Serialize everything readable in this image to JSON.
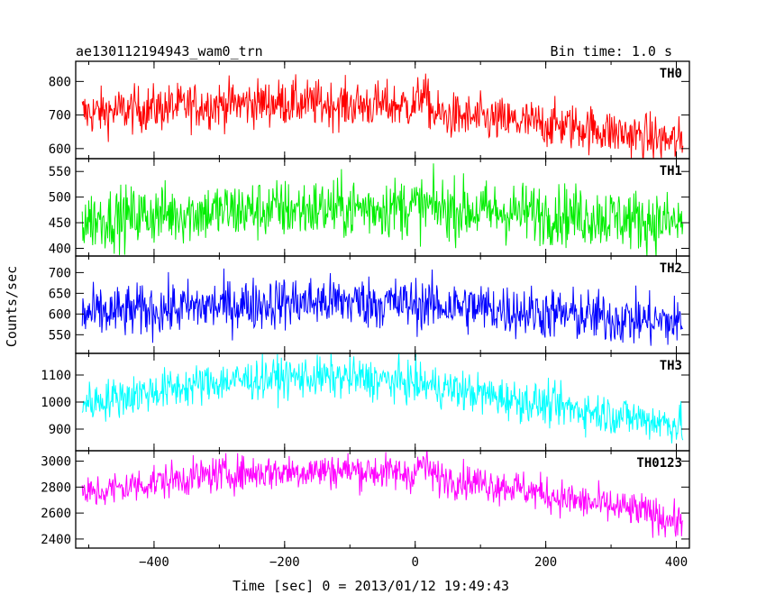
{
  "header": {
    "left_title": "ae130112194943_wam0_trn",
    "right_title": "Bin time: 1.0 s"
  },
  "chart_data": [
    {
      "type": "line",
      "label": "TH0",
      "color": "#ff0000",
      "x_range": [
        -510,
        410
      ],
      "ylim": [
        570,
        860
      ],
      "yticks": [
        600,
        700,
        800
      ],
      "trend": [
        [
          -510,
          705
        ],
        [
          -400,
          720
        ],
        [
          -300,
          732
        ],
        [
          -200,
          738
        ],
        [
          -100,
          730
        ],
        [
          0,
          728
        ],
        [
          10,
          770
        ],
        [
          30,
          700
        ],
        [
          150,
          680
        ],
        [
          250,
          665
        ],
        [
          350,
          635
        ],
        [
          410,
          618
        ]
      ],
      "noise": 35
    },
    {
      "type": "line",
      "label": "TH1",
      "color": "#00ee00",
      "x_range": [
        -510,
        410
      ],
      "ylim": [
        385,
        575
      ],
      "yticks": [
        400,
        450,
        500,
        550
      ],
      "trend": [
        [
          -510,
          455
        ],
        [
          -400,
          466
        ],
        [
          -300,
          472
        ],
        [
          -200,
          476
        ],
        [
          -100,
          478
        ],
        [
          0,
          482
        ],
        [
          100,
          472
        ],
        [
          200,
          468
        ],
        [
          300,
          460
        ],
        [
          410,
          448
        ]
      ],
      "noise": 30
    },
    {
      "type": "line",
      "label": "TH2",
      "color": "#0000ff",
      "x_range": [
        -510,
        410
      ],
      "ylim": [
        505,
        740
      ],
      "yticks": [
        550,
        600,
        650,
        700
      ],
      "trend": [
        [
          -510,
          598
        ],
        [
          -400,
          610
        ],
        [
          -300,
          620
        ],
        [
          -200,
          628
        ],
        [
          -100,
          630
        ],
        [
          0,
          624
        ],
        [
          100,
          615
        ],
        [
          200,
          602
        ],
        [
          300,
          590
        ],
        [
          410,
          578
        ]
      ],
      "noise": 32
    },
    {
      "type": "line",
      "label": "TH3",
      "color": "#00ffff",
      "x_range": [
        -510,
        410
      ],
      "ylim": [
        820,
        1180
      ],
      "yticks": [
        900,
        1000,
        1100
      ],
      "trend": [
        [
          -510,
          995
        ],
        [
          -400,
          1040
        ],
        [
          -300,
          1075
        ],
        [
          -200,
          1092
        ],
        [
          -100,
          1090
        ],
        [
          0,
          1070
        ],
        [
          100,
          1030
        ],
        [
          200,
          990
        ],
        [
          300,
          955
        ],
        [
          410,
          915
        ]
      ],
      "noise": 38
    },
    {
      "type": "line",
      "label": "TH0123",
      "color": "#ff00ff",
      "x_range": [
        -510,
        410
      ],
      "ylim": [
        2330,
        3080
      ],
      "yticks": [
        2400,
        2600,
        2800,
        3000
      ],
      "trend": [
        [
          -510,
          2740
        ],
        [
          -400,
          2840
        ],
        [
          -300,
          2900
        ],
        [
          -200,
          2920
        ],
        [
          -100,
          2930
        ],
        [
          0,
          2900
        ],
        [
          10,
          2990
        ],
        [
          30,
          2880
        ],
        [
          150,
          2800
        ],
        [
          250,
          2690
        ],
        [
          350,
          2610
        ],
        [
          410,
          2520
        ]
      ],
      "noise": 70
    }
  ],
  "x_axis": {
    "label": "Time [sec] 0 = 2013/01/12 19:49:43",
    "ticks": [
      -400,
      -200,
      0,
      200,
      400
    ],
    "tick_labels": [
      "−400",
      "−200",
      "0",
      "200",
      "400"
    ]
  },
  "y_axis": {
    "label": "Counts/sec"
  }
}
